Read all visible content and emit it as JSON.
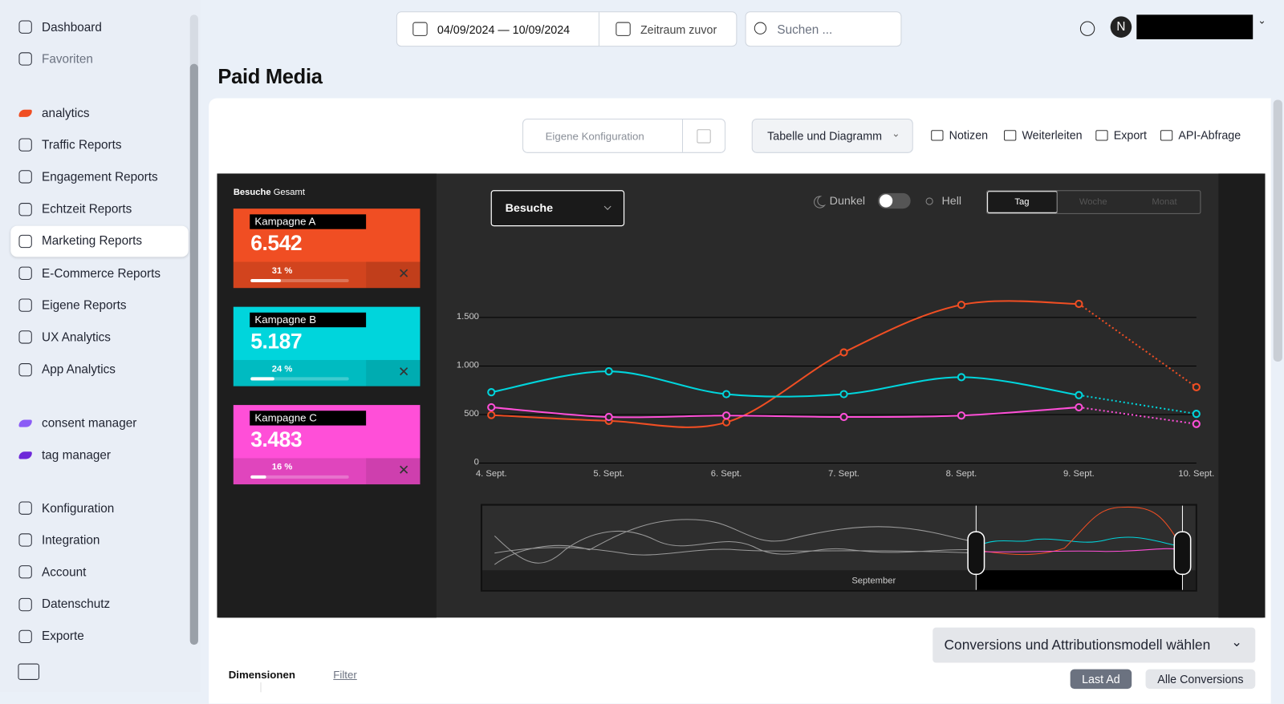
{
  "sidebar": {
    "groups": [
      [
        {
          "label": "Dashboard"
        },
        {
          "label": "Favoriten",
          "muted": true
        }
      ],
      [
        {
          "label": "analytics",
          "logo": "#f04e23"
        },
        {
          "label": "Traffic Reports"
        },
        {
          "label": "Engagement Reports"
        },
        {
          "label": "Echtzeit Reports"
        },
        {
          "label": "Marketing Reports",
          "active": true
        },
        {
          "label": "E-Commerce Reports"
        },
        {
          "label": "Eigene Reports"
        },
        {
          "label": "UX Analytics"
        },
        {
          "label": "App Analytics"
        }
      ],
      [
        {
          "label": "consent manager",
          "logo": "#8b5cf6"
        },
        {
          "label": "tag manager",
          "logo": "#6d28d9"
        }
      ],
      [
        {
          "label": "Konfiguration"
        },
        {
          "label": "Integration"
        },
        {
          "label": "Account"
        },
        {
          "label": "Datenschutz"
        },
        {
          "label": "Exporte"
        }
      ]
    ]
  },
  "topbar": {
    "date_from": "04/09/2024",
    "date_separator": "—",
    "date_to": "10/09/2024",
    "previous_period": "Zeitraum zuvor",
    "search_placeholder": "Suchen ...",
    "avatar": "N"
  },
  "page_title": "Paid Media",
  "toolbar": {
    "configuration": "Eigene Konfiguration",
    "view": "Tabelle und Diagramm",
    "actions": [
      "Notizen",
      "Weiterleiten",
      "Export",
      "API-Abfrage"
    ]
  },
  "chart_data": {
    "type": "line",
    "metric": "Besuche",
    "panel_label": "Gesamt",
    "theme_dark": "Dunkel",
    "theme_light": "Hell",
    "granularity": [
      "Tag",
      "Woche",
      "Monat"
    ],
    "navigator_label": "September",
    "categories": [
      "4. Sept.",
      "5. Sept.",
      "6. Sept.",
      "7. Sept.",
      "8. Sept.",
      "9. Sept.",
      "10. Sept."
    ],
    "ylim": [
      0,
      1500
    ],
    "yticks": [
      0,
      500,
      {
        "value": 1000,
        "label": "1.000"
      },
      {
        "value": 1500,
        "label": "1.500"
      }
    ],
    "grid": true,
    "dotted_last_segment": true,
    "series": [
      {
        "name": "Kampagne A",
        "color": "#f04e23",
        "values": [
          495,
          435,
          420,
          1140,
          1630,
          1640,
          782
        ],
        "total_label": "6.542",
        "share": 31,
        "share_label": "31 %"
      },
      {
        "name": "Kampagne B",
        "color": "#00d5dc",
        "values": [
          730,
          945,
          710,
          710,
          885,
          700,
          507
        ],
        "total_label": "5.187",
        "share": 24,
        "share_label": "24 %"
      },
      {
        "name": "Kampagne C",
        "color": "#ff4fd8",
        "values": [
          575,
          475,
          490,
          475,
          490,
          575,
          403
        ],
        "total_label": "3.483",
        "share": 16,
        "share_label": "16 %"
      }
    ]
  },
  "bottom": {
    "conversions_button": "Conversions und Attributionsmodell wählen",
    "tabs": [
      "Dimensionen",
      "Filter"
    ],
    "models": [
      "Last Ad",
      "Alle Conversions"
    ]
  }
}
